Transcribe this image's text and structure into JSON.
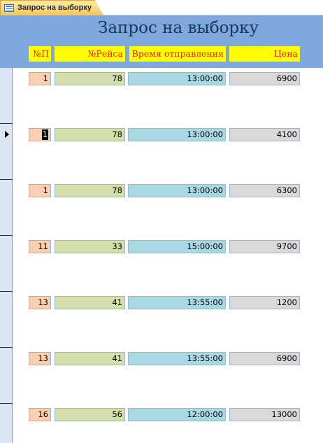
{
  "tab": {
    "label": "Запрос на выборку",
    "icon": "form-icon"
  },
  "form": {
    "title": "Запрос на выборку",
    "headers": {
      "np": "№П",
      "flight": "№Рейса",
      "time": "Время отправления",
      "price": "Цена"
    }
  },
  "records": [
    {
      "np": "1",
      "flight": "78",
      "time": "13:00:00",
      "price": "6900"
    },
    {
      "np": "1",
      "flight": "78",
      "time": "13:00:00",
      "price": "4100"
    },
    {
      "np": "1",
      "flight": "78",
      "time": "13:00:00",
      "price": "6300"
    },
    {
      "np": "11",
      "flight": "33",
      "time": "15:00:00",
      "price": "9700"
    },
    {
      "np": "13",
      "flight": "41",
      "time": "13:55:00",
      "price": "1200"
    },
    {
      "np": "13",
      "flight": "41",
      "time": "13:55:00",
      "price": "6900"
    },
    {
      "np": "16",
      "flight": "56",
      "time": "12:00:00",
      "price": "13000"
    }
  ],
  "current_record_index": 1,
  "colors": {
    "header_bg": "#7ea7dc",
    "label_bg": "#ffff00",
    "label_text": "#e02020",
    "field_np": "#fbcfb1",
    "field_flight": "#d3dfaa",
    "field_time": "#a8d8e4",
    "field_price": "#d9d9d9"
  }
}
